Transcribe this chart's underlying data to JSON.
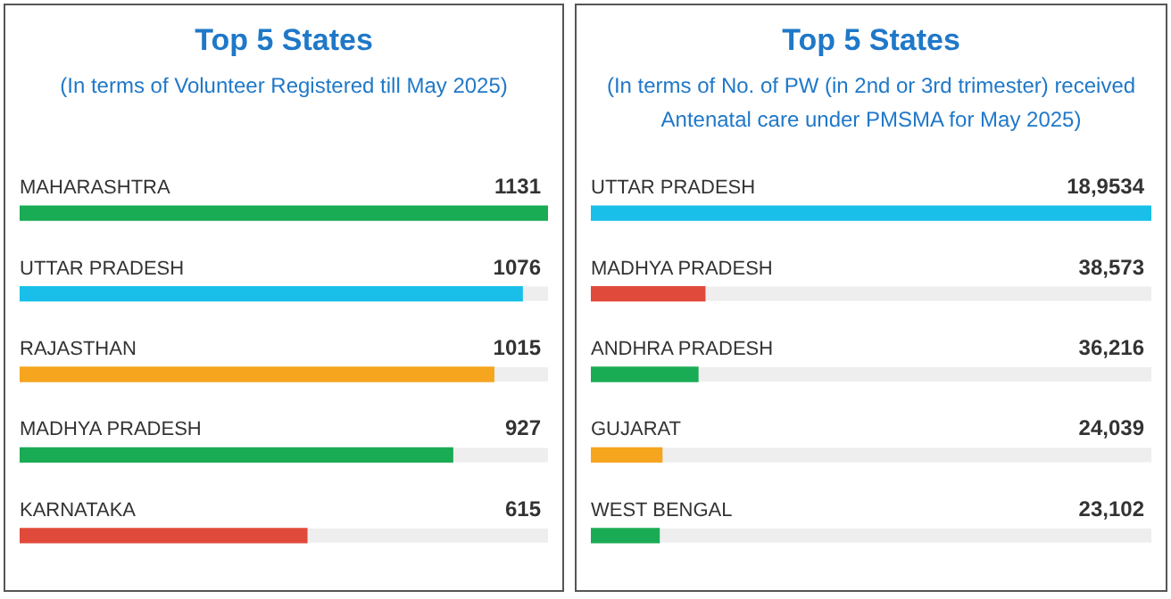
{
  "chart_data": [
    {
      "type": "bar",
      "orientation": "horizontal",
      "title": "Top 5 States",
      "subtitle": "(In terms of Volunteer Registered till May 2025)",
      "categories": [
        "MAHARASHTRA",
        "UTTAR PRADESH",
        "RAJASTHAN",
        "MADHYA PRADESH",
        "KARNATAKA"
      ],
      "values": [
        1131,
        1076,
        1015,
        927,
        615
      ],
      "colors": [
        "#1aab55",
        "#19bfe8",
        "#f5a51e",
        "#1aab55",
        "#e04a3a"
      ],
      "value_labels": [
        "1131",
        "1076",
        "1015",
        "927",
        "615"
      ],
      "xlim": [
        0,
        1131
      ],
      "tick_labels": false
    },
    {
      "type": "bar",
      "orientation": "horizontal",
      "title": "Top 5 States",
      "subtitle": "(In terms of No. of PW (in 2nd or 3rd trimester) received Antenatal care under PMSMA for May 2025)",
      "categories": [
        "UTTAR PRADESH",
        "MADHYA PRADESH",
        "ANDHRA PRADESH",
        "GUJARAT",
        "WEST BENGAL"
      ],
      "values": [
        189534,
        38573,
        36216,
        24039,
        23102
      ],
      "colors": [
        "#19bfe8",
        "#e04a3a",
        "#1aab55",
        "#f5a51e",
        "#1aab55"
      ],
      "value_labels": [
        "18,9534",
        "38,573",
        "36,216",
        "24,039",
        "23,102"
      ],
      "xlim": [
        0,
        189534
      ],
      "tick_labels": false
    }
  ]
}
